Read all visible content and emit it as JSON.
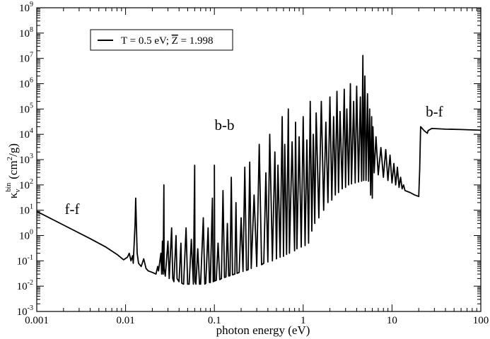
{
  "chart_data": {
    "type": "line",
    "title": "",
    "xlabel": "photon energy (eV)",
    "ylabel": {
      "symbol": "κ",
      "subscript": "ν",
      "superscript": "bin",
      "units_open": "(cm",
      "units_power": "2",
      "units_close": "/g)"
    },
    "xscale": "log",
    "yscale": "log",
    "xlim": [
      0.001,
      100
    ],
    "ylim": [
      0.001,
      1000000000
    ],
    "grid": false,
    "x_ticks": [
      {
        "value": 0.001,
        "label": "0.001"
      },
      {
        "value": 0.01,
        "label": "0.01"
      },
      {
        "value": 0.1,
        "label": "0.1"
      },
      {
        "value": 1,
        "label": "1"
      },
      {
        "value": 10,
        "label": "10"
      },
      {
        "value": 100,
        "label": "100"
      }
    ],
    "y_ticks": [
      {
        "value": 0.001,
        "base": "10",
        "exp": "-3"
      },
      {
        "value": 0.01,
        "base": "10",
        "exp": "-2"
      },
      {
        "value": 0.1,
        "base": "10",
        "exp": "-1"
      },
      {
        "value": 1,
        "base": "10",
        "exp": "0"
      },
      {
        "value": 10,
        "base": "10",
        "exp": "1"
      },
      {
        "value": 100,
        "base": "10",
        "exp": "2"
      },
      {
        "value": 1000,
        "base": "10",
        "exp": "3"
      },
      {
        "value": 10000,
        "base": "10",
        "exp": "4"
      },
      {
        "value": 100000,
        "base": "10",
        "exp": "5"
      },
      {
        "value": 1000000,
        "base": "10",
        "exp": "6"
      },
      {
        "value": 10000000,
        "base": "10",
        "exp": "7"
      },
      {
        "value": 100000000,
        "base": "10",
        "exp": "8"
      },
      {
        "value": 1000000000,
        "base": "10",
        "exp": "9"
      }
    ],
    "legend": {
      "placement": "top-left",
      "text_prefix": "T = 0.5 eV; ",
      "z_symbol": "Z",
      "text_suffix": " = 1.998"
    },
    "annotations": [
      {
        "text": "f-f",
        "x": 0.0025,
        "y": 7
      },
      {
        "text": "b-b",
        "x": 0.13,
        "y": 15000
      },
      {
        "text": "b-f",
        "x": 30,
        "y": 50000
      }
    ],
    "series": [
      {
        "color": "#000000",
        "points": [
          [
            0.001,
            9
          ],
          [
            0.002,
            2.6
          ],
          [
            0.004,
            0.75
          ],
          [
            0.006,
            0.35
          ],
          [
            0.008,
            0.18
          ],
          [
            0.0095,
            0.11
          ],
          [
            0.0105,
            0.14
          ],
          [
            0.011,
            0.2
          ],
          [
            0.0115,
            0.1
          ],
          [
            0.012,
            0.16
          ],
          [
            0.0122,
            0.08
          ],
          [
            0.0128,
            3
          ],
          [
            0.013,
            30
          ],
          [
            0.0132,
            4
          ],
          [
            0.0135,
            0.2
          ],
          [
            0.014,
            0.08
          ],
          [
            0.015,
            0.06
          ],
          [
            0.016,
            0.12
          ],
          [
            0.017,
            0.05
          ],
          [
            0.018,
            0.04
          ],
          [
            0.02,
            0.035
          ],
          [
            0.022,
            0.03
          ],
          [
            0.023,
            0.06
          ],
          [
            0.0235,
            0.04
          ],
          [
            0.025,
            0.2
          ],
          [
            0.0255,
            0.03
          ],
          [
            0.026,
            0.6
          ],
          [
            0.0265,
            0.03
          ],
          [
            0.027,
            100
          ],
          [
            0.0272,
            0.05
          ],
          [
            0.028,
            0.025
          ],
          [
            0.03,
            0.6
          ],
          [
            0.031,
            0.02
          ],
          [
            0.033,
            2
          ],
          [
            0.034,
            0.02
          ],
          [
            0.035,
            0.015
          ],
          [
            0.037,
            1
          ],
          [
            0.038,
            0.02
          ],
          [
            0.04,
            0.015
          ],
          [
            0.042,
            0.5
          ],
          [
            0.043,
            0.013
          ],
          [
            0.045,
            0.012
          ],
          [
            0.048,
            2
          ],
          [
            0.05,
            0.012
          ],
          [
            0.052,
            0.012
          ],
          [
            0.055,
            0.7
          ],
          [
            0.058,
            0.012
          ],
          [
            0.06,
            600
          ],
          [
            0.0605,
            0.015
          ],
          [
            0.062,
            0.012
          ],
          [
            0.065,
            0.3
          ],
          [
            0.068,
            0.012
          ],
          [
            0.07,
            0.012
          ],
          [
            0.075,
            5
          ],
          [
            0.078,
            0.012
          ],
          [
            0.08,
            0.013
          ],
          [
            0.085,
            2
          ],
          [
            0.088,
            0.014
          ],
          [
            0.09,
            0.014
          ],
          [
            0.095,
            30
          ],
          [
            0.097,
            0.015
          ],
          [
            0.1,
            0.016
          ],
          [
            0.1,
            600
          ],
          [
            0.101,
            0.016
          ],
          [
            0.105,
            0.017
          ],
          [
            0.11,
            0.5
          ],
          [
            0.115,
            0.018
          ],
          [
            0.12,
            0.02
          ],
          [
            0.125,
            60
          ],
          [
            0.13,
            0.022
          ],
          [
            0.135,
            0.023
          ],
          [
            0.14,
            3
          ],
          [
            0.145,
            0.025
          ],
          [
            0.15,
            0.026
          ],
          [
            0.155,
            200
          ],
          [
            0.16,
            0.028
          ],
          [
            0.17,
            0.03
          ],
          [
            0.175,
            20
          ],
          [
            0.18,
            0.032
          ],
          [
            0.19,
            0.035
          ],
          [
            0.2,
            5
          ],
          [
            0.21,
            0.038
          ],
          [
            0.22,
            500
          ],
          [
            0.23,
            0.042
          ],
          [
            0.24,
            0.045
          ],
          [
            0.25,
            800
          ],
          [
            0.26,
            0.05
          ],
          [
            0.28,
            40
          ],
          [
            0.3,
            0.06
          ],
          [
            0.32,
            4000
          ],
          [
            0.34,
            0.07
          ],
          [
            0.36,
            0.08
          ],
          [
            0.38,
            300
          ],
          [
            0.4,
            0.09
          ],
          [
            0.42,
            10000
          ],
          [
            0.45,
            0.1
          ],
          [
            0.48,
            2000
          ],
          [
            0.5,
            0.12
          ],
          [
            0.52,
            600
          ],
          [
            0.55,
            0.14
          ],
          [
            0.58,
            50000
          ],
          [
            0.6,
            0.15
          ],
          [
            0.62,
            4000
          ],
          [
            0.65,
            0.18
          ],
          [
            0.68,
            100000
          ],
          [
            0.7,
            0.2
          ],
          [
            0.75,
            5000
          ],
          [
            0.8,
            0.25
          ],
          [
            0.82,
            30000
          ],
          [
            0.85,
            0.3
          ],
          [
            0.9,
            8000
          ],
          [
            0.95,
            0.35
          ],
          [
            1.0,
            50000
          ],
          [
            1.05,
            0.4
          ],
          [
            1.1,
            6000
          ],
          [
            1.15,
            0.5
          ],
          [
            1.2,
            200000
          ],
          [
            1.25,
            1.5
          ],
          [
            1.3,
            10000
          ],
          [
            1.35,
            3
          ],
          [
            1.4,
            70000
          ],
          [
            1.5,
            5
          ],
          [
            1.6,
            200000
          ],
          [
            1.7,
            10
          ],
          [
            1.8,
            30000
          ],
          [
            1.9,
            20
          ],
          [
            2.0,
            300000
          ],
          [
            2.1,
            25
          ],
          [
            2.2,
            50000
          ],
          [
            2.3,
            40
          ],
          [
            2.4,
            500000
          ],
          [
            2.5,
            50
          ],
          [
            2.6,
            80000
          ],
          [
            2.75,
            70
          ],
          [
            2.9,
            600000
          ],
          [
            3.0,
            80
          ],
          [
            3.1,
            100000
          ],
          [
            3.25,
            100
          ],
          [
            3.4,
            1000000
          ],
          [
            3.5,
            110
          ],
          [
            3.7,
            200000
          ],
          [
            3.85,
            120
          ],
          [
            4.0,
            800000
          ],
          [
            4.2,
            130
          ],
          [
            4.4,
            300000
          ],
          [
            4.55,
            140
          ],
          [
            4.7,
            13000000
          ],
          [
            4.8,
            150
          ],
          [
            4.95,
            2000000
          ],
          [
            5.1,
            150
          ],
          [
            5.3,
            400000
          ],
          [
            5.45,
            140
          ],
          [
            5.6,
            100000
          ],
          [
            5.75,
            40
          ],
          [
            5.9,
            50000
          ],
          [
            6.0,
            30
          ],
          [
            6.1,
            20000
          ],
          [
            6.3,
            300
          ],
          [
            6.6,
            8000
          ],
          [
            7.0,
            250
          ],
          [
            7.5,
            3000
          ],
          [
            8.0,
            200
          ],
          [
            8.5,
            2500
          ],
          [
            9.0,
            150
          ],
          [
            9.5,
            1500
          ],
          [
            10.0,
            120
          ],
          [
            10.5,
            700
          ],
          [
            11.0,
            100
          ],
          [
            11.5,
            500
          ],
          [
            12.0,
            80
          ],
          [
            12.5,
            200
          ],
          [
            13.0,
            70
          ],
          [
            13.5,
            100
          ],
          [
            14.0,
            60
          ],
          [
            16.0,
            50
          ],
          [
            18.0,
            40
          ],
          [
            20.0,
            35
          ],
          [
            20.5,
            400
          ],
          [
            21.0,
            20000
          ],
          [
            23.0,
            14000
          ],
          [
            25.0,
            11000
          ],
          [
            25.5,
            14000
          ],
          [
            28.0,
            17000
          ],
          [
            40.0,
            16000
          ],
          [
            60.0,
            15500
          ],
          [
            100.0,
            14500
          ]
        ]
      }
    ]
  }
}
